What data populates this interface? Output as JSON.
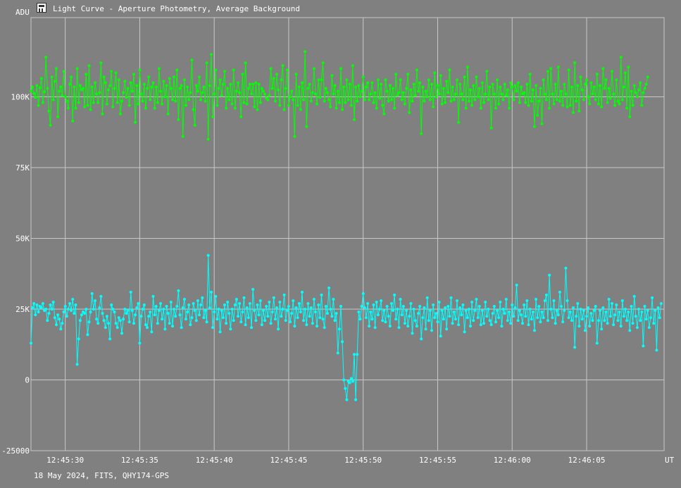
{
  "title": "Light Curve - Aperture Photometry, Average Background",
  "footer": "18 May 2024, FITS, QHY174-GPS",
  "chart_data": {
    "type": "line",
    "ylabel": "ADU",
    "xlabel": "UT",
    "ylim": [
      -25000,
      128000
    ],
    "xlim": [
      "12:45:27.7",
      "12:46:10.2"
    ],
    "y_ticks": [
      {
        "value": -25000,
        "label": "-25000"
      },
      {
        "value": 0,
        "label": "0"
      },
      {
        "value": 25000,
        "label": "25K"
      },
      {
        "value": 50000,
        "label": "50K"
      },
      {
        "value": 75000,
        "label": "75K"
      },
      {
        "value": 100000,
        "label": "100K"
      }
    ],
    "x_ticks": [
      "12:45:30",
      "12:45:35",
      "12:45:40",
      "12:45:45",
      "12:45:50",
      "12:45:55",
      "12:46:00",
      "12:46:05"
    ],
    "grid": true,
    "start_time": "12:45:27.7",
    "sample_interval_s": 0.1,
    "series": [
      {
        "color": "#00ff00",
        "values": [
          102000,
          103500,
          101200,
          99800,
          104000,
          97000,
          103200,
          106500,
          98000,
          101800,
          114000,
          103000,
          95000,
          90000,
          107000,
          99000,
          105500,
          110000,
          93000,
          102000,
          103500,
          100500,
          109000,
          100000,
          98500,
          96000,
          104500,
          107000,
          91500,
          103500,
          96000,
          110000,
          98000,
          104000,
          102500,
          103000,
          96500,
          108000,
          97000,
          111000,
          95500,
          103500,
          98000,
          105000,
          101000,
          98000,
          101500,
          112000,
          94000,
          107000,
          105000,
          97500,
          102500,
          104000,
          109000,
          96500,
          103000,
          108500,
          98000,
          106000,
          94000,
          98500,
          101500,
          105500,
          99800,
          103000,
          97000,
          105000,
          102000,
          108000,
          91000,
          104000,
          97500,
          109500,
          101000,
          98500,
          104500,
          96000,
          103000,
          107000,
          99000,
          103500,
          105000,
          96000,
          103500,
          98000,
          110000,
          102000,
          97500,
          105500,
          100000,
          104000,
          94000,
          106500,
          103000,
          99000,
          107000,
          98500,
          109500,
          92000,
          103000,
          104000,
          86000,
          106000,
          97000,
          103500,
          99000,
          101500,
          113000,
          95500,
          90000,
          104000,
          102000,
          107000,
          99000,
          101500,
          103500,
          98500,
          112000,
          85000,
          104000,
          115000,
          93000,
          101000,
          109500,
          97000,
          103000,
          106000,
          100500,
          104500,
          109000,
          96000,
          103000,
          99000,
          104500,
          97500,
          109500,
          96000,
          102000,
          105000,
          101500,
          93000,
          108000,
          98000,
          112000,
          97500,
          103000,
          104500,
          101000,
          104500,
          96500,
          105000,
          95500,
          104500,
          98000,
          103000,
          102000,
          101000,
          99500,
          99000,
          100500,
          110000,
          103000,
          106500,
          98500,
          108000,
          102500,
          97000,
          106000,
          111000,
          95500,
          103000,
          109500,
          97000,
          100000,
          102000,
          99000,
          86000,
          108000,
          97000,
          103500,
          95500,
          105000,
          99000,
          116000,
          89500,
          103000,
          104500,
          98500,
          101500,
          110000,
          101000,
          97500,
          106000,
          99800,
          106000,
          112000,
          98500,
          103000,
          101500,
          99000,
          96500,
          107500,
          101000,
          104000,
          96000,
          102000,
          98000,
          110000,
          95500,
          103500,
          98000,
          106000,
          99000,
          104500,
          97000,
          111000,
          92000,
          103500,
          98500,
          104000,
          100000,
          102000,
          107000,
          99000,
          103500,
          105000,
          99000,
          101000,
          105000,
          98000,
          101500,
          96000,
          106000,
          99500,
          104500,
          97000,
          94000,
          106000,
          102000,
          98500,
          104000,
          99000,
          103000,
          96000,
          108000,
          100500,
          101500,
          106000,
          99000,
          101500,
          97500,
          103000,
          108000,
          94500,
          102500,
          98500,
          104500,
          100500,
          109500,
          102000,
          105000,
          87000,
          103500,
          98500,
          102000,
          100000,
          106000,
          99000,
          104500,
          96500,
          108500,
          100000,
          104000,
          101000,
          107500,
          97500,
          103000,
          98000,
          105500,
          101500,
          109500,
          98500,
          103500,
          99000,
          101000,
          106000,
          91000,
          104500,
          101000,
          99000,
          107000,
          96000,
          110500,
          98500,
          102500,
          97000,
          104000,
          99000,
          107000,
          100000,
          103000,
          96000,
          105000,
          98000,
          101000,
          109000,
          99000,
          103500,
          89000,
          104500,
          101000,
          96000,
          106000,
          97500,
          103500,
          101000,
          99000,
          104500,
          100500,
          102500,
          96000,
          105000,
          103500,
          99000,
          104000,
          102000,
          105000,
          98000,
          103500,
          101000,
          101500,
          98000,
          104500,
          97000,
          108000,
          98500,
          102500,
          89500,
          104000,
          93500,
          98500,
          103000,
          90500,
          106000,
          101000,
          99000,
          109000,
          96000,
          110000,
          101000,
          97500,
          104500,
          99000,
          110500,
          98500,
          102000,
          97000,
          104500,
          101000,
          96500,
          109500,
          97000,
          103500,
          94500,
          112000,
          98500,
          104000,
          95000,
          107000,
          102500,
          99000,
          104500,
          106000,
          100000,
          97500,
          105000,
          101000,
          103500,
          99000,
          108000,
          97500,
          104000,
          96500,
          110000,
          103000,
          106000,
          98000,
          103000,
          99500,
          109000,
          101000,
          97000,
          106000,
          98500,
          97500,
          114000,
          99000,
          103500,
          108500,
          96000,
          110500,
          93000,
          102000,
          97000,
          104000,
          101500,
          100000,
          102500,
          105000,
          97000,
          101500,
          103000,
          104500,
          107000
        ]
      },
      {
        "color": "#00ffff",
        "values": [
          13000,
          25500,
          27000,
          23000,
          26500,
          24000,
          26000,
          25500,
          27000,
          24500,
          25000,
          21000,
          23500,
          26500,
          25000,
          27500,
          22000,
          19500,
          23000,
          21500,
          18000,
          20000,
          24000,
          26000,
          22500,
          25000,
          27000,
          24500,
          28500,
          23500,
          26500,
          5500,
          14500,
          21000,
          23000,
          24000,
          23500,
          25000,
          16000,
          20500,
          24000,
          30500,
          25000,
          28000,
          21500,
          20000,
          25500,
          29500,
          23500,
          21000,
          18500,
          22500,
          20000,
          14500,
          26500,
          25000,
          24000,
          20000,
          18500,
          22000,
          21000,
          16500,
          21500,
          25000,
          23500,
          24500,
          20500,
          31000,
          24500,
          20000,
          23000,
          25500,
          27000,
          13000,
          22500,
          25000,
          26500,
          19500,
          18500,
          22500,
          24000,
          17000,
          29500,
          23000,
          26000,
          20000,
          24500,
          27000,
          21500,
          25000,
          18000,
          26000,
          23500,
          20000,
          27500,
          19000,
          25000,
          22500,
          26000,
          31500,
          23000,
          18500,
          25500,
          28500,
          21500,
          24000,
          26500,
          19500,
          22000,
          27000,
          24500,
          21000,
          28000,
          23000,
          26500,
          29000,
          22000,
          24500,
          20500,
          44000,
          25500,
          31000,
          18500,
          24000,
          29500,
          21500,
          25000,
          17000,
          24500,
          22000,
          26500,
          20000,
          27500,
          23500,
          18000,
          25000,
          21000,
          26500,
          28500,
          22500,
          27000,
          20500,
          24000,
          29000,
          19500,
          25500,
          22000,
          27000,
          18500,
          32000,
          24500,
          21000,
          26500,
          23000,
          28000,
          19500,
          24500,
          21000,
          26000,
          22500,
          27500,
          20000,
          24000,
          29000,
          21500,
          25500,
          18000,
          27500,
          22500,
          25000,
          30000,
          21000,
          24500,
          26000,
          20500,
          23500,
          28000,
          19000,
          25500,
          22000,
          27000,
          24000,
          31000,
          21000,
          25000,
          19500,
          27000,
          22500,
          25500,
          20000,
          28500,
          24000,
          19000,
          26500,
          22000,
          30000,
          21500,
          18500,
          26000,
          23500,
          32500,
          25000,
          22500,
          28500,
          21000,
          23500,
          9500,
          18000,
          26000,
          13500,
          0,
          -3000,
          -7000,
          -500,
          -1000,
          500,
          -500,
          9000,
          -7000,
          9000,
          24000,
          21500,
          26000,
          30500,
          25500,
          22000,
          27000,
          19000,
          24000,
          21500,
          26500,
          18500,
          27500,
          23000,
          25000,
          28000,
          21000,
          24500,
          20500,
          26000,
          22500,
          19000,
          27000,
          24500,
          30000,
          21500,
          25000,
          18500,
          28500,
          23000,
          26000,
          20000,
          24500,
          19000,
          22500,
          27000,
          16500,
          25000,
          21000,
          19000,
          23500,
          26000,
          14500,
          22000,
          25500,
          18000,
          29000,
          21000,
          24500,
          17500,
          26500,
          22000,
          23500,
          20500,
          27500,
          15500,
          24500,
          21500,
          25500,
          18000,
          26000,
          22500,
          29000,
          20000,
          24000,
          21500,
          28000,
          19500,
          25500,
          23000,
          26500,
          17000,
          24500,
          22000,
          25000,
          19000,
          27500,
          21000,
          24500,
          28500,
          22000,
          26000,
          19500,
          24500,
          20000,
          27500,
          22500,
          25000,
          21000,
          19500,
          23500,
          26000,
          20500,
          24500,
          22000,
          27500,
          19000,
          25000,
          23500,
          28500,
          21000,
          24000,
          20000,
          26500,
          22500,
          25500,
          33500,
          21000,
          24500,
          23000,
          20000,
          26500,
          22500,
          28000,
          19500,
          25000,
          21500,
          24000,
          17500,
          28500,
          22000,
          26000,
          20500,
          24000,
          22000,
          28000,
          30000,
          21000,
          37000,
          25000,
          22000,
          28000,
          20000,
          24500,
          23000,
          31000,
          26000,
          20500,
          24500,
          39500,
          28000,
          22000,
          24000,
          21000,
          25500,
          11500,
          22500,
          27000,
          19000,
          25000,
          21500,
          24500,
          17500,
          22500,
          25500,
          19000,
          23500,
          21000,
          24500,
          26000,
          13000,
          21000,
          24500,
          18000,
          25500,
          21000,
          24000,
          20000,
          28500,
          22500,
          27000,
          19500,
          23000,
          26500,
          21000,
          24000,
          19000,
          28000,
          22500,
          25000,
          21000,
          24000,
          17500,
          26000,
          20000,
          29500,
          22500,
          18500,
          25000,
          21000,
          24000,
          12000,
          26000,
          21500,
          24500,
          18500,
          22000,
          29000,
          20000,
          24500,
          10500,
          25500,
          22000,
          27000
        ]
      }
    ]
  }
}
